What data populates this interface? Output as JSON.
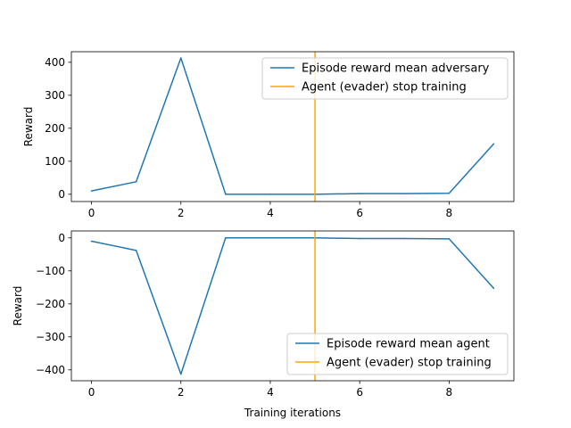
{
  "chart_data": [
    {
      "type": "line",
      "title": "",
      "xlabel": "",
      "ylabel": "Reward",
      "x": [
        0,
        1,
        2,
        3,
        4,
        5,
        6,
        7,
        8,
        9
      ],
      "xlim": [
        -0.45,
        9.45
      ],
      "ylim": [
        -22,
        432
      ],
      "xticks": [
        0,
        2,
        4,
        6,
        8
      ],
      "yticks": [
        0,
        100,
        200,
        300,
        400
      ],
      "grid": false,
      "legend_position": "upper-right",
      "series": [
        {
          "name": "Episode reward mean adversary",
          "color": "#1f77b4",
          "values": [
            10,
            38,
            413,
            0,
            0,
            0,
            2,
            2,
            3,
            153
          ]
        }
      ],
      "vlines": [
        {
          "name": "Agent (evader) stop training",
          "color": "#ffa500",
          "x": 5
        }
      ]
    },
    {
      "type": "line",
      "title": "",
      "xlabel": "Training iterations",
      "ylabel": "Reward",
      "x": [
        0,
        1,
        2,
        3,
        4,
        5,
        6,
        7,
        8,
        9
      ],
      "xlim": [
        -0.45,
        9.45
      ],
      "ylim": [
        -433,
        21
      ],
      "xticks": [
        0,
        2,
        4,
        6,
        8
      ],
      "yticks": [
        0,
        -100,
        -200,
        -300,
        -400
      ],
      "grid": false,
      "legend_position": "lower-right",
      "series": [
        {
          "name": "Episode reward mean agent",
          "color": "#1f77b4",
          "values": [
            -10,
            -38,
            -413,
            0,
            0,
            0,
            -2,
            -2,
            -3,
            -153
          ]
        }
      ],
      "vlines": [
        {
          "name": "Agent (evader) stop training",
          "color": "#ffa500",
          "x": 5
        }
      ]
    }
  ]
}
